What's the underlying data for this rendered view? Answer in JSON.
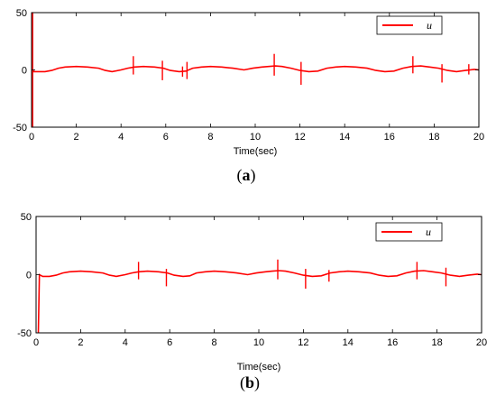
{
  "chart_data": [
    {
      "type": "line",
      "panel": "a",
      "caption_letter": "a",
      "xlabel": "Time(sec)",
      "ylabel": "",
      "xlim": [
        0,
        20
      ],
      "ylim": [
        -50,
        50
      ],
      "xticks": [
        0,
        2,
        4,
        6,
        8,
        10,
        12,
        14,
        16,
        18,
        20
      ],
      "yticks": [
        -50,
        0,
        50
      ],
      "grid": false,
      "legend_position": "top-right",
      "series": [
        {
          "name": "u",
          "color": "#ff0000",
          "baseline": {
            "x": [
              0,
              0.05,
              0.1,
              0.3,
              0.6,
              0.9,
              1.2,
              1.5,
              2.0,
              2.5,
              3.0,
              3.3,
              3.6,
              4.0,
              4.3,
              4.6,
              5.0,
              5.5,
              5.9,
              6.2,
              6.6,
              6.9,
              7.2,
              7.6,
              8.0,
              8.5,
              9.0,
              9.5,
              9.9,
              10.3,
              10.6,
              10.9,
              11.2,
              11.6,
              12.0,
              12.4,
              12.8,
              13.2,
              13.6,
              14.0,
              14.5,
              15.0,
              15.4,
              15.8,
              16.2,
              16.6,
              17.0,
              17.4,
              17.8,
              18.2,
              18.6,
              19.0,
              19.4,
              19.8,
              20.0
            ],
            "y": [
              0,
              0,
              -1.5,
              -1.5,
              -1.5,
              -0.5,
              1.5,
              2.5,
              3,
              2.5,
              1.5,
              -0.5,
              -1.5,
              0,
              1.5,
              2.5,
              3,
              2.5,
              1.5,
              -0.5,
              -1.5,
              -1,
              1.5,
              2.5,
              3,
              2.5,
              1.5,
              0,
              1.5,
              2.5,
              3,
              3.5,
              3,
              1.5,
              -0.5,
              -1.5,
              -1,
              1.5,
              2.5,
              3,
              2.5,
              1.5,
              -0.5,
              -1.5,
              -1,
              1.5,
              3,
              3.5,
              2.5,
              1.5,
              -0.5,
              -1.5,
              -0.5,
              0.5,
              0
            ]
          },
          "spikes": [
            {
              "x": 0.05,
              "y1": 52,
              "y2": -50
            },
            {
              "x": 4.55,
              "y1": 12,
              "y2": -4
            },
            {
              "x": 5.85,
              "y1": 8,
              "y2": -9
            },
            {
              "x": 6.75,
              "y1": 3,
              "y2": -6
            },
            {
              "x": 6.95,
              "y1": 7,
              "y2": -8
            },
            {
              "x": 10.85,
              "y1": 14,
              "y2": -5
            },
            {
              "x": 12.05,
              "y1": 7,
              "y2": -13
            },
            {
              "x": 17.05,
              "y1": 12,
              "y2": -3
            },
            {
              "x": 18.35,
              "y1": 5,
              "y2": -11
            },
            {
              "x": 19.55,
              "y1": 5,
              "y2": -4
            }
          ]
        }
      ]
    },
    {
      "type": "line",
      "panel": "b",
      "caption_letter": "b",
      "xlabel": "Time(sec)",
      "ylabel": "",
      "xlim": [
        0,
        20
      ],
      "ylim": [
        -50,
        50
      ],
      "xticks": [
        0,
        2,
        4,
        6,
        8,
        10,
        12,
        14,
        16,
        18,
        20
      ],
      "yticks": [
        -50,
        0,
        50
      ],
      "grid": false,
      "legend_position": "top-right",
      "series": [
        {
          "name": "u",
          "color": "#ff0000",
          "baseline": {
            "x": [
              0.1,
              0.15,
              0.3,
              0.6,
              0.9,
              1.2,
              1.5,
              2.0,
              2.5,
              3.0,
              3.3,
              3.6,
              4.0,
              4.3,
              4.6,
              5.0,
              5.5,
              5.9,
              6.2,
              6.6,
              6.9,
              7.2,
              7.6,
              8.0,
              8.5,
              9.0,
              9.5,
              9.9,
              10.3,
              10.6,
              10.9,
              11.2,
              11.6,
              12.0,
              12.4,
              12.8,
              13.2,
              13.6,
              14.0,
              14.5,
              15.0,
              15.4,
              15.8,
              16.2,
              16.6,
              17.0,
              17.4,
              17.8,
              18.2,
              18.6,
              19.0,
              19.4,
              19.8,
              20.0
            ],
            "y": [
              -50,
              0,
              -1.5,
              -1.5,
              -0.5,
              1.5,
              2.5,
              3,
              2.5,
              1.5,
              -0.5,
              -1.5,
              0,
              1.5,
              2.5,
              3,
              2.5,
              1.5,
              -0.5,
              -1.5,
              -1,
              1.5,
              2.5,
              3,
              2.5,
              1.5,
              0,
              1.5,
              2.5,
              3,
              3.5,
              3,
              1.5,
              -0.5,
              -1.5,
              -1,
              1.5,
              2.5,
              3,
              2.5,
              1.5,
              -0.5,
              -1.5,
              -1,
              1.5,
              3,
              3.5,
              2.5,
              1.5,
              -0.5,
              -1.5,
              -0.5,
              0.5,
              0
            ]
          },
          "spikes": [
            {
              "x": 4.6,
              "y1": 11,
              "y2": -4
            },
            {
              "x": 5.85,
              "y1": 5,
              "y2": -10
            },
            {
              "x": 10.85,
              "y1": 13,
              "y2": -4
            },
            {
              "x": 12.1,
              "y1": 5,
              "y2": -12
            },
            {
              "x": 13.15,
              "y1": 4,
              "y2": -6
            },
            {
              "x": 17.1,
              "y1": 11,
              "y2": -4
            },
            {
              "x": 18.4,
              "y1": 6,
              "y2": -10
            }
          ]
        }
      ]
    }
  ]
}
